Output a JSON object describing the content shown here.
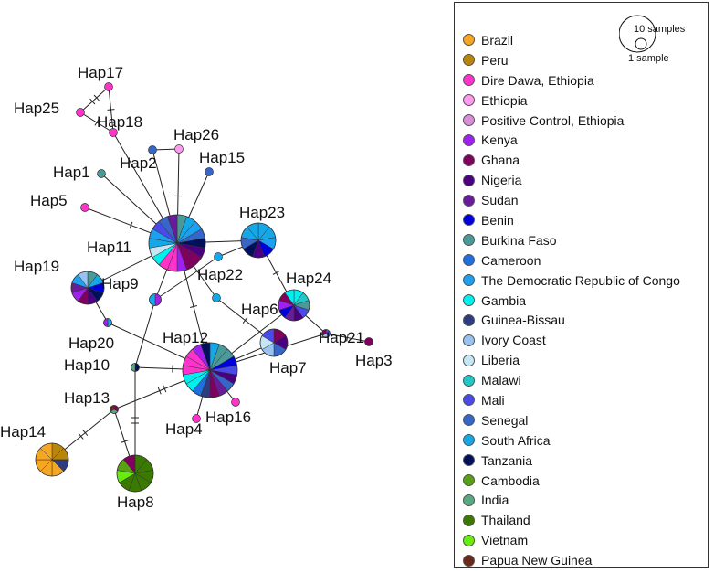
{
  "legend": {
    "scale_large": "10 samples",
    "scale_small": "1 sample",
    "items": [
      {
        "label": "Brazil",
        "color": "#f5a623"
      },
      {
        "label": "Peru",
        "color": "#b8860b"
      },
      {
        "label": "Dire Dawa, Ethiopia",
        "color": "#ff33cc"
      },
      {
        "label": "Ethiopia",
        "color": "#ff99ee"
      },
      {
        "label": "Positive Control, Ethiopia",
        "color": "#d98ed9"
      },
      {
        "label": "Kenya",
        "color": "#a020f0"
      },
      {
        "label": "Ghana",
        "color": "#800060"
      },
      {
        "label": "Nigeria",
        "color": "#4b0082"
      },
      {
        "label": "Sudan",
        "color": "#6a1b9a"
      },
      {
        "label": "Benin",
        "color": "#0000dd"
      },
      {
        "label": "Burkina Faso",
        "color": "#4a9a9a"
      },
      {
        "label": "Cameroon",
        "color": "#1e6fe0"
      },
      {
        "label": "The Democratic Republic of Congo",
        "color": "#1ea0f0"
      },
      {
        "label": "Gambia",
        "color": "#00f0f0"
      },
      {
        "label": "Guinea-Bissau",
        "color": "#2e3d80"
      },
      {
        "label": "Ivory Coast",
        "color": "#99c2f0"
      },
      {
        "label": "Liberia",
        "color": "#c5e6f5"
      },
      {
        "label": "Malawi",
        "color": "#20c8c8"
      },
      {
        "label": "Mali",
        "color": "#4a4ae8"
      },
      {
        "label": "Senegal",
        "color": "#3566c8"
      },
      {
        "label": "South Africa",
        "color": "#14a8e8"
      },
      {
        "label": "Tanzania",
        "color": "#00105a"
      },
      {
        "label": "Cambodia",
        "color": "#5aa014"
      },
      {
        "label": "India",
        "color": "#5aa882"
      },
      {
        "label": "Thailand",
        "color": "#3a7a00"
      },
      {
        "label": "Vietnam",
        "color": "#66ee11"
      },
      {
        "label": "Papua New Guinea",
        "color": "#6a2a1a"
      }
    ]
  },
  "network": {
    "nodes": [
      {
        "id": "Hap1",
        "label": "Hap1",
        "count": 1,
        "colors": [
          "#4a9a9a"
        ]
      },
      {
        "id": "Hap2",
        "label": "Hap2",
        "count": 1,
        "colors": [
          "#3566c8"
        ]
      },
      {
        "id": "Hap3",
        "label": "Hap3",
        "count": 1,
        "colors": [
          "#800060"
        ]
      },
      {
        "id": "Hap4",
        "label": "Hap4",
        "count": 1,
        "colors": [
          "#ff33cc"
        ]
      },
      {
        "id": "Hap5",
        "label": "Hap5",
        "count": 1,
        "colors": [
          "#ff33cc"
        ]
      },
      {
        "id": "Hap6",
        "label": "Hap6",
        "count": 1,
        "colors": [
          "#14a8e8"
        ]
      },
      {
        "id": "Hap7",
        "label": "Hap7",
        "count": 5,
        "colors": [
          "#800060",
          "#4b0082",
          "#3566c8",
          "#99c2f0",
          "#c5e6f5",
          "#4a4ae8"
        ]
      },
      {
        "id": "Hap8",
        "label": "Hap8",
        "count": 9,
        "colors": [
          "#3a7a00",
          "#3a7a00",
          "#3a7a00",
          "#3a7a00",
          "#3a7a00",
          "#3a7a00",
          "#66ee11",
          "#5aa014",
          "#800060"
        ]
      },
      {
        "id": "Hap9",
        "label": "Hap9",
        "count": 2,
        "colors": [
          "#a020f0",
          "#14a8e8"
        ]
      },
      {
        "id": "Hap10",
        "label": "Hap10",
        "count": 1,
        "colors": [
          "#00105a",
          "#5aa882"
        ]
      },
      {
        "id": "Hap11",
        "label": "Hap11",
        "count": 28,
        "colors": [
          "#4a9a9a",
          "#14a8e8",
          "#1ea0f0",
          "#3566c8",
          "#00105a",
          "#4b0082",
          "#800060",
          "#800060",
          "#a020f0",
          "#ff33cc",
          "#ff33cc",
          "#00f0f0",
          "#c5e6f5",
          "#14a8e8",
          "#1ea0f0",
          "#4a4ae8",
          "#3566c8",
          "#6a1b9a"
        ]
      },
      {
        "id": "Hap12",
        "label": "Hap12",
        "count": 30,
        "colors": [
          "#14a8e8",
          "#4a9a9a",
          "#4a9a9a",
          "#0000dd",
          "#4a4ae8",
          "#4b0082",
          "#3566c8",
          "#6a1b9a",
          "#800060",
          "#2e3d80",
          "#1e6fe0",
          "#00f0f0",
          "#00f0f0",
          "#ff33cc",
          "#ff33cc",
          "#ff33cc",
          "#a020f0",
          "#00105a"
        ]
      },
      {
        "id": "Hap13",
        "label": "Hap13",
        "count": 1,
        "colors": [
          "#800060",
          "#5aa882",
          "#6a2a1a"
        ]
      },
      {
        "id": "Hap14",
        "label": "Hap14",
        "count": 8,
        "colors": [
          "#b8860b",
          "#b8860b",
          "#2e3d80",
          "#f5a623",
          "#f5a623",
          "#f5a623",
          "#f5a623",
          "#f5a623"
        ]
      },
      {
        "id": "Hap15",
        "label": "Hap15",
        "count": 1,
        "colors": [
          "#3566c8"
        ]
      },
      {
        "id": "Hap16",
        "label": "Hap16",
        "count": 1,
        "colors": [
          "#ff33cc"
        ]
      },
      {
        "id": "Hap17",
        "label": "Hap17",
        "count": 1,
        "colors": [
          "#ff33cc"
        ]
      },
      {
        "id": "Hap18",
        "label": "Hap18",
        "count": 1,
        "colors": [
          "#ff33cc"
        ]
      },
      {
        "id": "Hap19",
        "label": "Hap19",
        "count": 8,
        "colors": [
          "#4a9a9a",
          "#14a8e8",
          "#0000dd",
          "#00105a",
          "#4b0082",
          "#800060",
          "#a020f0",
          "#6a1b9a",
          "#1ea0f0",
          "#99c2f0"
        ]
      },
      {
        "id": "Hap20",
        "label": "Hap20",
        "count": 1,
        "colors": [
          "#14a8e8",
          "#a020f0"
        ]
      },
      {
        "id": "Hap21",
        "label": "Hap21",
        "count": 1,
        "colors": [
          "#4a4ae8",
          "#99c2f0",
          "#800060"
        ]
      },
      {
        "id": "Hap22",
        "label": "Hap22",
        "count": 1,
        "colors": [
          "#14a8e8"
        ]
      },
      {
        "id": "Hap23",
        "label": "Hap23",
        "count": 12,
        "colors": [
          "#14a8e8",
          "#14a8e8",
          "#1ea0f0",
          "#0000dd",
          "#4b0082",
          "#00105a",
          "#3566c8",
          "#14a8e8",
          "#14a8e8"
        ]
      },
      {
        "id": "Hap24",
        "label": "Hap24",
        "count": 10,
        "colors": [
          "#00f0f0",
          "#20c8c8",
          "#4a9a9a",
          "#4a4ae8",
          "#4b0082",
          "#6a1b9a",
          "#0000dd",
          "#a020f0",
          "#800060",
          "#00f0f0"
        ]
      },
      {
        "id": "Hap25",
        "label": "Hap25",
        "count": 1,
        "colors": [
          "#ff33cc"
        ]
      },
      {
        "id": "Hap26",
        "label": "Hap26",
        "count": 1,
        "colors": [
          "#ff99ee"
        ]
      }
    ],
    "edges": [
      {
        "from": "Hap25",
        "to": "Hap17",
        "ticks": 2
      },
      {
        "from": "Hap17",
        "to": "Hap18",
        "ticks": 1
      },
      {
        "from": "Hap25",
        "to": "Hap18",
        "ticks": 1
      },
      {
        "from": "Hap18",
        "to": "Hap11",
        "ticks": 0
      },
      {
        "from": "Hap2",
        "to": "Hap26",
        "ticks": 0
      },
      {
        "from": "Hap26",
        "to": "Hap11",
        "ticks": 1
      },
      {
        "from": "Hap2",
        "to": "Hap11",
        "ticks": 0
      },
      {
        "from": "Hap1",
        "to": "Hap11",
        "ticks": 0
      },
      {
        "from": "Hap15",
        "to": "Hap11",
        "ticks": 0
      },
      {
        "from": "Hap5",
        "to": "Hap11",
        "ticks": 1
      },
      {
        "from": "Hap11",
        "to": "Hap23",
        "ticks": 0
      },
      {
        "from": "Hap11",
        "to": "Hap19",
        "ticks": 0
      },
      {
        "from": "Hap11",
        "to": "Hap9",
        "ticks": 0
      },
      {
        "from": "Hap11",
        "to": "Hap12",
        "ticks": 1
      },
      {
        "from": "Hap11",
        "to": "Hap6",
        "ticks": 0
      },
      {
        "from": "Hap9",
        "to": "Hap22",
        "ticks": 0
      },
      {
        "from": "Hap22",
        "to": "Hap23",
        "ticks": 0
      },
      {
        "from": "Hap9",
        "to": "Hap10",
        "ticks": 0
      },
      {
        "from": "Hap19",
        "to": "Hap20",
        "ticks": 0
      },
      {
        "from": "Hap20",
        "to": "Hap12",
        "ticks": 0
      },
      {
        "from": "Hap23",
        "to": "Hap24",
        "ticks": 1
      },
      {
        "from": "Hap6",
        "to": "Hap7",
        "ticks": 1
      },
      {
        "from": "Hap24",
        "to": "Hap21",
        "ticks": 0
      },
      {
        "from": "Hap24",
        "to": "Hap12",
        "ticks": 0
      },
      {
        "from": "Hap21",
        "to": "Hap3",
        "ticks": 1
      },
      {
        "from": "Hap21",
        "to": "Hap12",
        "ticks": 0
      },
      {
        "from": "Hap7",
        "to": "Hap12",
        "ticks": 0
      },
      {
        "from": "Hap12",
        "to": "Hap10",
        "ticks": 1
      },
      {
        "from": "Hap12",
        "to": "Hap4",
        "ticks": 0
      },
      {
        "from": "Hap12",
        "to": "Hap16",
        "ticks": 0
      },
      {
        "from": "Hap12",
        "to": "Hap13",
        "ticks": 2
      },
      {
        "from": "Hap10",
        "to": "Hap8",
        "ticks": 2
      },
      {
        "from": "Hap13",
        "to": "Hap8",
        "ticks": 1
      },
      {
        "from": "Hap13",
        "to": "Hap14",
        "ticks": 2
      }
    ]
  }
}
